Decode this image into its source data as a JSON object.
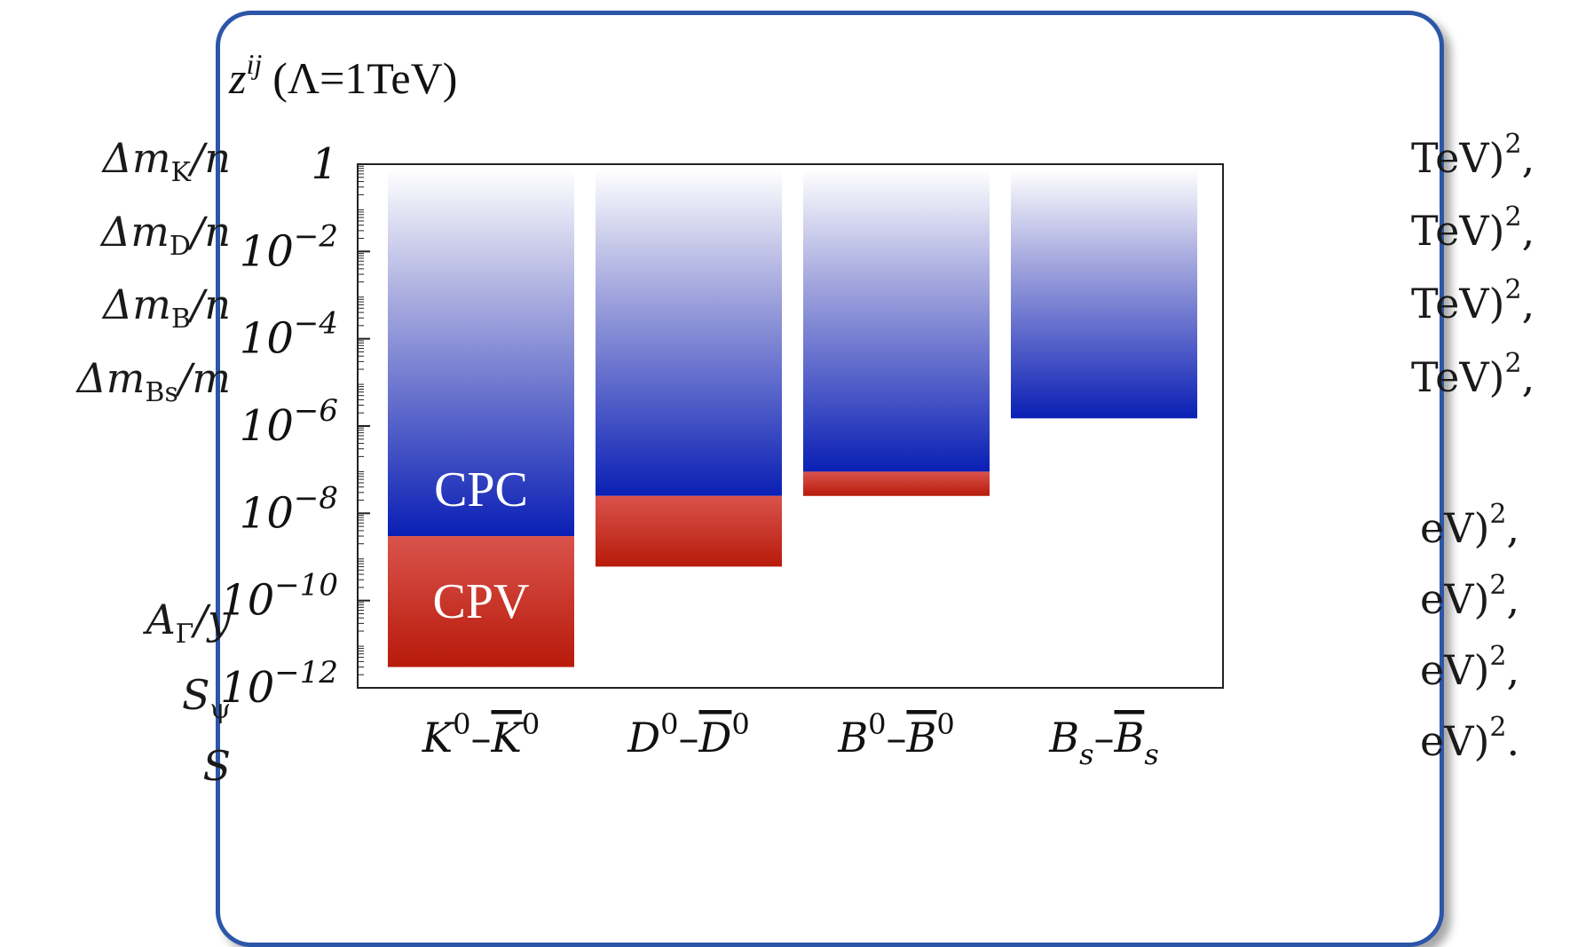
{
  "slide_fragments": {
    "left": [
      {
        "base": "Δm",
        "sub": "K",
        "tail": "/n"
      },
      {
        "base": "Δm",
        "sub": "D",
        "tail": "/n"
      },
      {
        "base": "Δm",
        "sub": "B",
        "tail": "/n"
      },
      {
        "base": "Δm",
        "sub": "B_s",
        "tail": "/m"
      },
      {
        "base": "A",
        "sub": "Γ",
        "tail": "/y"
      },
      {
        "base": "S",
        "sub": "ψ",
        "tail": ""
      },
      {
        "base": "S",
        "sub": "",
        "tail": ""
      }
    ],
    "right": [
      {
        "text": "TeV)",
        "sup": "2",
        "tail": ","
      },
      {
        "text": "TeV)",
        "sup": "2",
        "tail": ","
      },
      {
        "text": "TeV)",
        "sup": "2",
        "tail": ","
      },
      {
        "text": "TeV)",
        "sup": "2",
        "tail": ","
      },
      {
        "text": "eV)",
        "sup": "2",
        "tail": ","
      },
      {
        "text": "eV)",
        "sup": "2",
        "tail": ","
      },
      {
        "text": "eV)",
        "sup": "2",
        "tail": ","
      },
      {
        "text": "eV)",
        "sup": "2",
        "tail": "."
      }
    ]
  },
  "chart_data": {
    "type": "bar",
    "title": "z^ij (Λ=1TeV)",
    "title_parts": {
      "symbol": "z",
      "superscript": "ij",
      "condition": "(Λ=1TeV)"
    },
    "yscale": "log",
    "ylim": [
      1e-12,
      1
    ],
    "yticks": [
      {
        "value": 1,
        "label": "1"
      },
      {
        "value": 0.01,
        "base": "10",
        "exp": "−2"
      },
      {
        "value": 0.0001,
        "base": "10",
        "exp": "−4"
      },
      {
        "value": 1e-06,
        "base": "10",
        "exp": "−6"
      },
      {
        "value": 1e-08,
        "base": "10",
        "exp": "−8"
      },
      {
        "value": 1e-10,
        "base": "10",
        "exp": "−10"
      },
      {
        "value": 1e-12,
        "base": "10",
        "exp": "−12"
      }
    ],
    "categories": [
      {
        "a": "K",
        "a_sup": "0",
        "b": "K",
        "b_sup": "0",
        "a_sub": "",
        "b_sub": ""
      },
      {
        "a": "D",
        "a_sup": "0",
        "b": "D",
        "b_sup": "0",
        "a_sub": "",
        "b_sub": ""
      },
      {
        "a": "B",
        "a_sup": "0",
        "b": "B",
        "b_sup": "0",
        "a_sub": "",
        "b_sub": ""
      },
      {
        "a": "B",
        "a_sup": "",
        "b": "B",
        "b_sup": "",
        "a_sub": "s",
        "b_sub": "s"
      }
    ],
    "series": [
      {
        "name": "CPC",
        "color": "#0a1fb5",
        "lower_bounds": [
          3e-09,
          2.5e-08,
          9e-08,
          1.5e-06
        ]
      },
      {
        "name": "CPV",
        "color": "#b81a0a",
        "lower_bounds": [
          3e-12,
          6e-10,
          2.5e-08,
          null
        ]
      }
    ],
    "bar_labels": {
      "cpc": "CPC",
      "cpv": "CPV"
    },
    "grid": false,
    "legend": "none"
  }
}
